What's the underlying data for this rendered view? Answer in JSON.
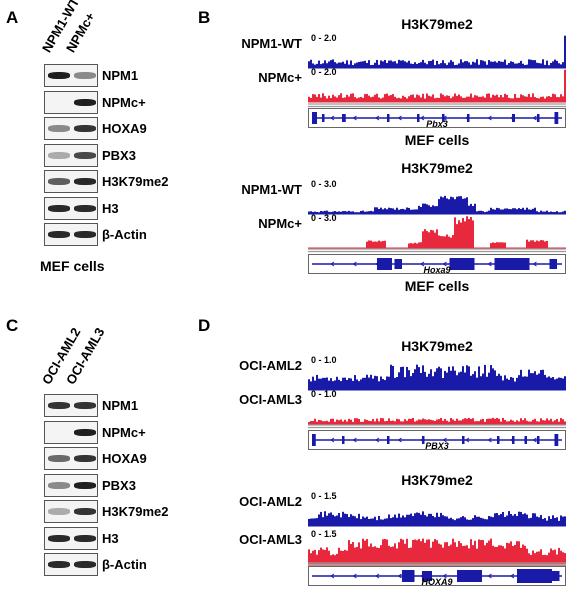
{
  "panels": {
    "A": {
      "letter": "A",
      "columns": [
        "NPM1-WT",
        "NPMc+"
      ],
      "cell_type": "MEF cells",
      "blots": [
        {
          "label": "NPM1",
          "bands": [
            0.95,
            0.45
          ]
        },
        {
          "label": "NPMc+",
          "bands": [
            0.0,
            0.95
          ]
        },
        {
          "label": "HOXA9",
          "bands": [
            0.45,
            0.85
          ]
        },
        {
          "label": "PBX3",
          "bands": [
            0.3,
            0.75
          ]
        },
        {
          "label": "H3K79me2",
          "bands": [
            0.65,
            0.9
          ]
        },
        {
          "label": "H3",
          "bands": [
            0.9,
            0.9
          ]
        },
        {
          "label": "β-Actin",
          "bands": [
            0.9,
            0.9
          ]
        }
      ]
    },
    "C": {
      "letter": "C",
      "columns": [
        "OCI-AML2",
        "OCI-AML3"
      ],
      "blots": [
        {
          "label": "NPM1",
          "bands": [
            0.85,
            0.85
          ]
        },
        {
          "label": "NPMc+",
          "bands": [
            0.0,
            0.95
          ]
        },
        {
          "label": "HOXA9",
          "bands": [
            0.6,
            0.85
          ]
        },
        {
          "label": "PBX3",
          "bands": [
            0.45,
            0.95
          ]
        },
        {
          "label": "H3K79me2",
          "bands": [
            0.3,
            0.85
          ]
        },
        {
          "label": "H3",
          "bands": [
            0.9,
            0.9
          ]
        },
        {
          "label": "β-Actin",
          "bands": [
            0.9,
            0.9
          ]
        }
      ]
    },
    "B": {
      "letter": "B",
      "groups": [
        {
          "title": "H3K79me2",
          "gene": "Pbx3",
          "cell_type": "MEF cells",
          "tracks": [
            {
              "label": "NPM1-WT",
              "range": "0 - 2.0",
              "color": "#1a1aa8"
            },
            {
              "label": "NPMc+",
              "range": "0 - 2.0",
              "color": "#e8283c"
            }
          ]
        },
        {
          "title": "H3K79me2",
          "gene": "Hoxa9",
          "cell_type": "MEF cells",
          "tracks": [
            {
              "label": "NPM1-WT",
              "range": "0 - 3.0",
              "color": "#1a1aa8"
            },
            {
              "label": "NPMc+",
              "range": "0 - 3.0",
              "color": "#e8283c"
            }
          ]
        }
      ]
    },
    "D": {
      "letter": "D",
      "groups": [
        {
          "title": "H3K79me2",
          "gene": "PBX3",
          "tracks": [
            {
              "label": "OCI-AML2",
              "range": "0 - 1.0",
              "color": "#1a1aa8"
            },
            {
              "label": "OCI-AML3",
              "range": "0 - 1.0",
              "color": "#e8283c"
            }
          ]
        },
        {
          "title": "H3K79me2",
          "gene": "HOXA9",
          "tracks": [
            {
              "label": "OCI-AML2",
              "range": "0 - 1.5",
              "color": "#1a1aa8"
            },
            {
              "label": "OCI-AML3",
              "range": "0 - 1.5",
              "color": "#e8283c"
            }
          ]
        }
      ]
    }
  }
}
